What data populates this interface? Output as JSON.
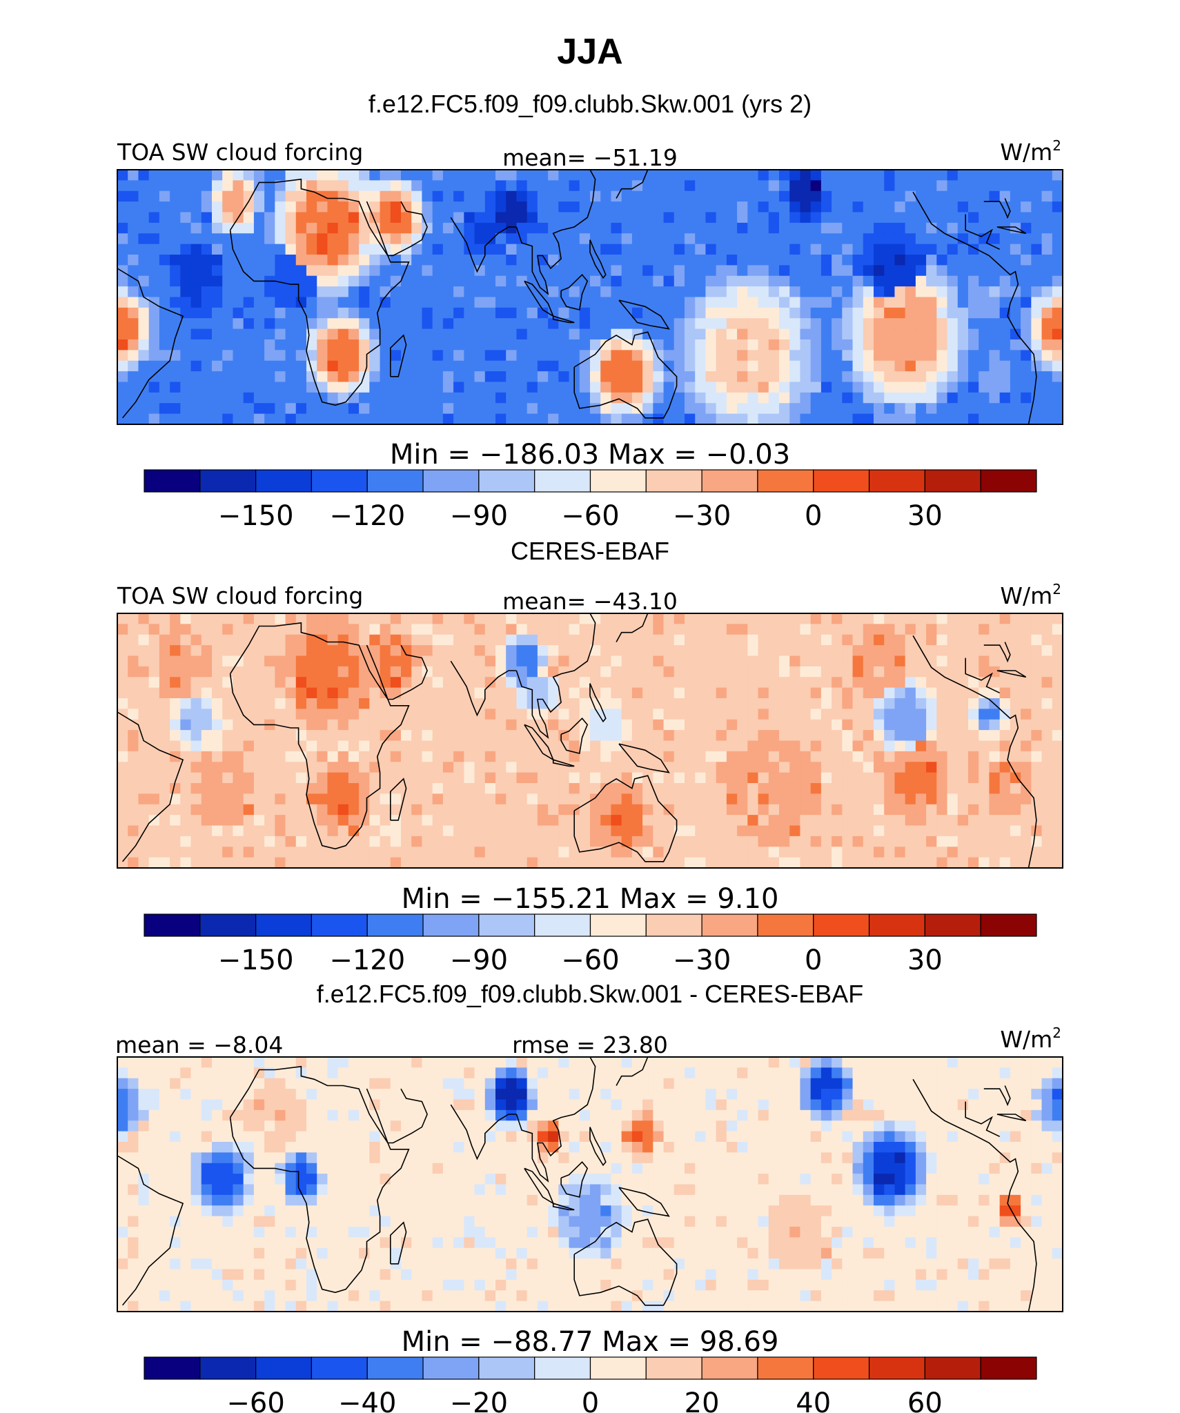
{
  "chart_data": {
    "type": "heatmap",
    "title": "JJA",
    "colors": [
      "#08007f",
      "#0a28b0",
      "#0b3ed8",
      "#1a55f0",
      "#3f7ef2",
      "#7fa4f5",
      "#adc6f8",
      "#d9e7fb",
      "#fdebd7",
      "#fbcdb3",
      "#f8a782",
      "#f5773e",
      "#f04e1c",
      "#d83310",
      "#b51e0b",
      "#8c0303"
    ],
    "panels": [
      {
        "subtitle": "f.e12.FC5.f09_f09.clubb.Skw.001 (yrs 2)",
        "left_label": "TOA SW cloud forcing",
        "center_label": "mean=  −51.19",
        "units_base": "W/m",
        "units_exp": "2",
        "minmax": "Min  =  −186.03  Max  =    −0.03",
        "colorbar_ticks": [
          "−150",
          "−120",
          "−90",
          "−60",
          "−30",
          "0",
          "30"
        ],
        "levels": [
          -165,
          -150,
          -135,
          -120,
          -105,
          -90,
          -75,
          -60,
          -45,
          -30,
          -15,
          0,
          15,
          30,
          45
        ],
        "base": 4,
        "blobs": [
          {
            "lon": 20,
            "lat": 22,
            "level": 11,
            "r": 25
          },
          {
            "lon": 45,
            "lat": 25,
            "level": 11,
            "r": 15
          },
          {
            "lon": -15,
            "lat": 30,
            "level": 10,
            "r": 12
          },
          {
            "lon": 25,
            "lat": -18,
            "level": 11,
            "r": 16
          },
          {
            "lon": -60,
            "lat": -10,
            "level": 11,
            "r": 16
          },
          {
            "lon": 133,
            "lat": -24,
            "level": 11,
            "r": 17
          },
          {
            "lon": -120,
            "lat": -12,
            "level": 10,
            "r": 28
          },
          {
            "lon": 180,
            "lat": -18,
            "level": 9,
            "r": 30
          },
          {
            "lon": 90,
            "lat": 26,
            "level": 1,
            "r": 12
          },
          {
            "lon": 80,
            "lat": 20,
            "level": 2,
            "r": 10
          },
          {
            "lon": -158,
            "lat": 32,
            "level": 1,
            "r": 11
          },
          {
            "lon": -125,
            "lat": 9,
            "level": 2,
            "r": 16
          },
          {
            "lon": -30,
            "lat": 6,
            "level": 2,
            "r": 14
          },
          {
            "lon": 5,
            "lat": 5,
            "level": 3,
            "r": 14
          },
          {
            "lon": -55,
            "lat": 22,
            "level": 4,
            "r": 12
          },
          {
            "lon": 130,
            "lat": 0,
            "level": 4,
            "r": 15
          },
          {
            "lon": -90,
            "lat": 0,
            "level": 5,
            "r": 10
          },
          {
            "lon": -85,
            "lat": -25,
            "level": 5,
            "r": 10
          }
        ]
      },
      {
        "subtitle": "CERES-EBAF",
        "left_label": "TOA SW cloud forcing",
        "center_label": "mean=  −43.10",
        "units_base": "W/m",
        "units_exp": "2",
        "minmax": "Min  =  −155.21  Max  =     9.10",
        "colorbar_ticks": [
          "−150",
          "−120",
          "−90",
          "−60",
          "−30",
          "0",
          "30"
        ],
        "levels": [
          -165,
          -150,
          -135,
          -120,
          -105,
          -90,
          -75,
          -60,
          -45,
          -30,
          -15,
          0,
          15,
          30,
          45
        ],
        "base": 9,
        "blobs": [
          {
            "lon": 20,
            "lat": 22,
            "level": 11,
            "r": 22
          },
          {
            "lon": 45,
            "lat": 25,
            "level": 11,
            "r": 13
          },
          {
            "lon": 25,
            "lat": -18,
            "level": 11,
            "r": 14
          },
          {
            "lon": 133,
            "lat": -24,
            "level": 11,
            "r": 15
          },
          {
            "lon": -115,
            "lat": -13,
            "level": 11,
            "r": 15
          },
          {
            "lon": -170,
            "lat": -15,
            "level": 10,
            "r": 26
          },
          {
            "lon": -20,
            "lat": -15,
            "level": 10,
            "r": 18
          },
          {
            "lon": -80,
            "lat": -15,
            "level": 10,
            "r": 14
          },
          {
            "lon": -35,
            "lat": 25,
            "level": 10,
            "r": 16
          },
          {
            "lon": -130,
            "lat": 25,
            "level": 10,
            "r": 16
          },
          {
            "lon": 95,
            "lat": 25,
            "level": 4,
            "r": 11
          },
          {
            "lon": 100,
            "lat": 15,
            "level": 6,
            "r": 10
          },
          {
            "lon": -120,
            "lat": 8,
            "level": 5,
            "r": 15
          },
          {
            "lon": -30,
            "lat": 6,
            "level": 6,
            "r": 12
          },
          {
            "lon": 125,
            "lat": 5,
            "level": 7,
            "r": 12
          },
          {
            "lon": -88,
            "lat": 8,
            "level": 4,
            "r": 8
          }
        ]
      },
      {
        "subtitle": "f.e12.FC5.f09_f09.clubb.Skw.001 - CERES-EBAF",
        "left_label": "mean  =   −8.04",
        "center_label": "rmse  =   23.80",
        "units_base": "W/m",
        "units_exp": "2",
        "minmax": "Min  =  −88.77  Max  =   98.69",
        "colorbar_ticks": [
          "−60",
          "−40",
          "−20",
          "0",
          "20",
          "40",
          "60"
        ],
        "levels": [
          -70,
          -60,
          -50,
          -40,
          -30,
          -20,
          -10,
          0,
          10,
          20,
          30,
          40,
          50,
          60,
          70
        ],
        "base": 8,
        "blobs": [
          {
            "lon": 90,
            "lat": 28,
            "level": 1,
            "r": 11
          },
          {
            "lon": -150,
            "lat": 30,
            "level": 2,
            "r": 12
          },
          {
            "lon": -125,
            "lat": 5,
            "level": 2,
            "r": 16
          },
          {
            "lon": -20,
            "lat": 2,
            "level": 3,
            "r": 14
          },
          {
            "lon": 10,
            "lat": 2,
            "level": 3,
            "r": 10
          },
          {
            "lon": 120,
            "lat": -10,
            "level": 5,
            "r": 16
          },
          {
            "lon": -60,
            "lat": 25,
            "level": 4,
            "r": 12
          },
          {
            "lon": 105,
            "lat": 15,
            "level": 13,
            "r": 6
          },
          {
            "lon": 140,
            "lat": 15,
            "level": 12,
            "r": 8
          },
          {
            "lon": -80,
            "lat": -8,
            "level": 12,
            "r": 6
          },
          {
            "lon": 0,
            "lat": 22,
            "level": 9,
            "r": 16
          },
          {
            "lon": -160,
            "lat": -15,
            "level": 9,
            "r": 18
          }
        ]
      }
    ]
  }
}
